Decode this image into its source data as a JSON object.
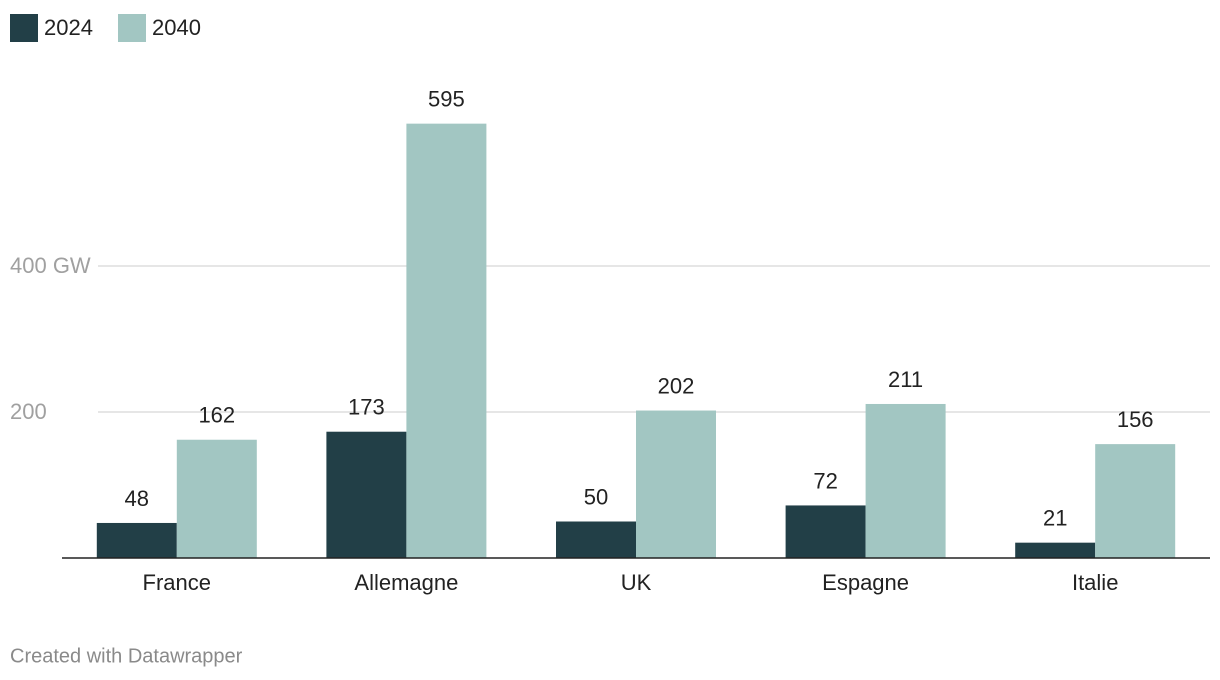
{
  "chart_data": {
    "type": "bar",
    "categories": [
      "France",
      "Allemagne",
      "UK",
      "Espagne",
      "Italie"
    ],
    "series": [
      {
        "name": "2024",
        "color": "#223f47",
        "values": [
          48,
          173,
          50,
          72,
          21
        ]
      },
      {
        "name": "2040",
        "color": "#a2c6c2",
        "values": [
          162,
          595,
          202,
          211,
          156
        ]
      }
    ],
    "ylim": [
      0,
      650
    ],
    "yticks": [
      200,
      {
        "value": 400,
        "label": "400 GW"
      }
    ],
    "grid": true
  },
  "footer": "Created with Datawrapper"
}
